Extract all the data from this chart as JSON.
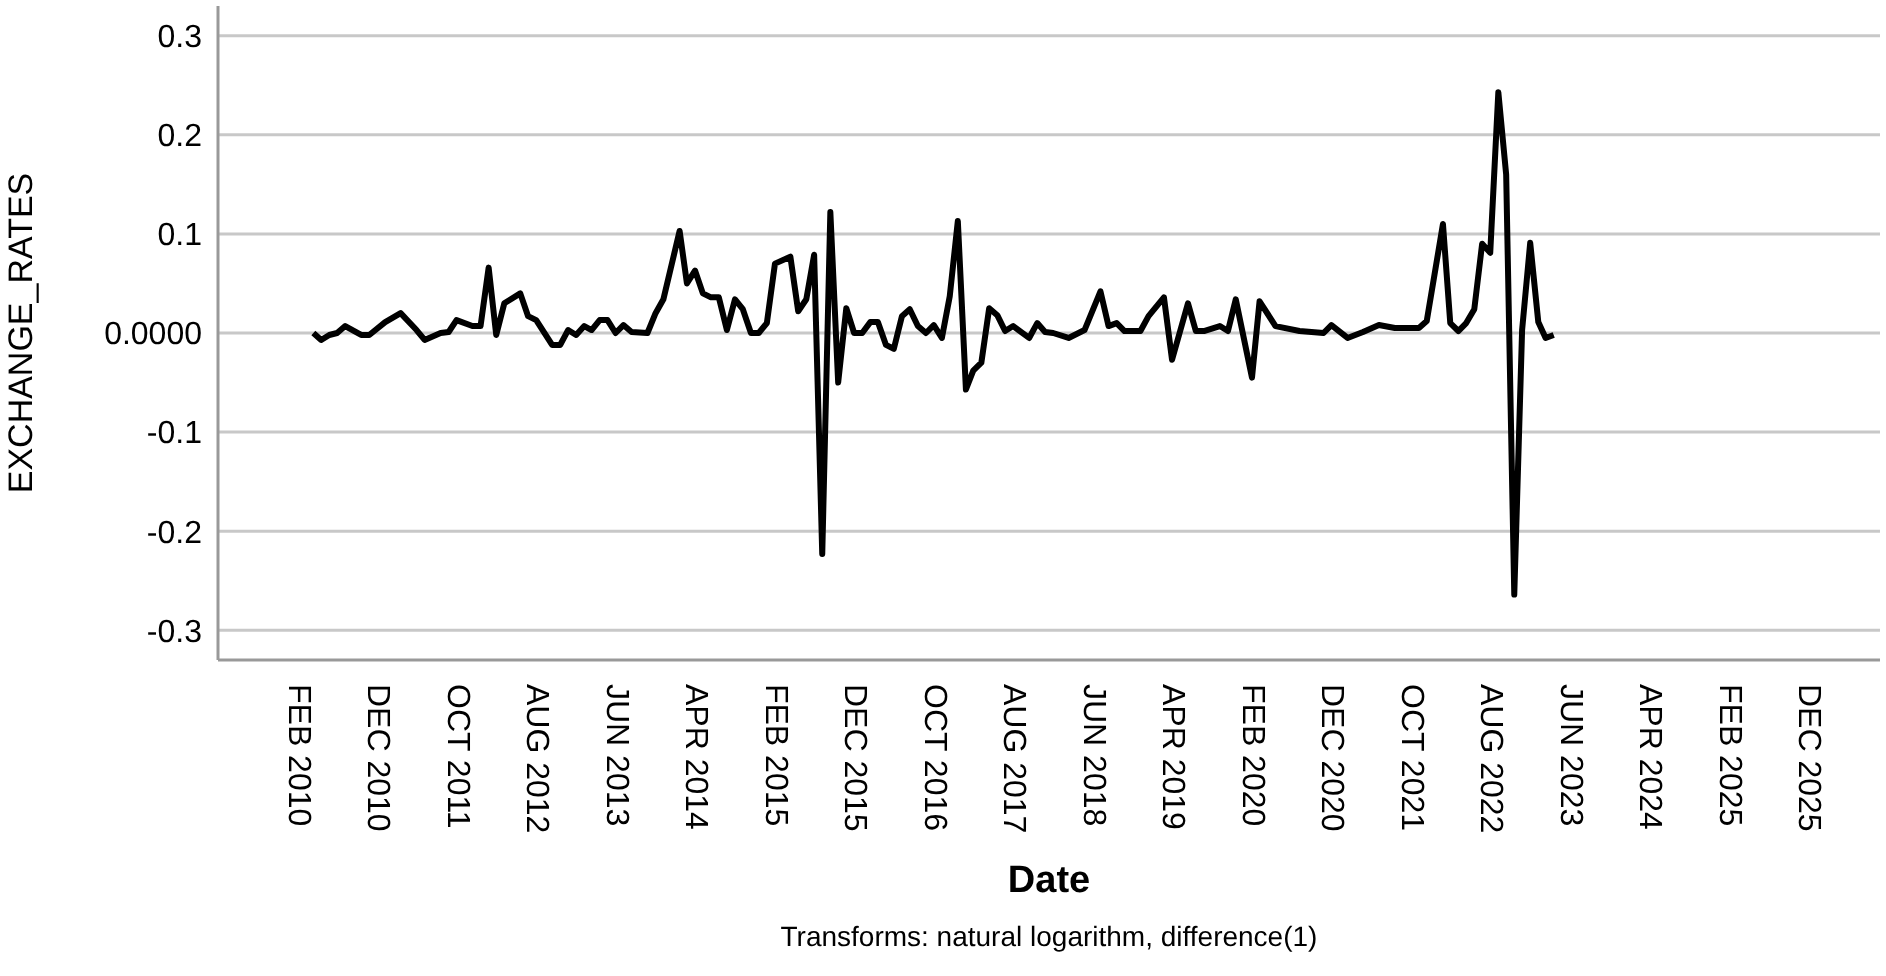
{
  "chart_data": {
    "type": "line",
    "xlabel": "Date",
    "ylabel": "EXCHANGE_RATES",
    "annotations": [
      "Transforms: natural logarithm, difference(1)"
    ],
    "x": [
      "2010-04",
      "2010-05",
      "2010-06",
      "2010-07",
      "2010-08",
      "2010-10",
      "2010-11",
      "2011-01",
      "2011-03",
      "2011-05",
      "2011-06",
      "2011-08",
      "2011-09",
      "2011-10",
      "2011-12",
      "2012-01",
      "2012-02",
      "2012-03",
      "2012-04",
      "2012-06",
      "2012-07",
      "2012-08",
      "2012-10",
      "2012-11",
      "2012-12",
      "2013-01",
      "2013-02",
      "2013-03",
      "2013-04",
      "2013-05",
      "2013-06",
      "2013-07",
      "2013-08",
      "2013-10",
      "2013-11",
      "2013-12",
      "2014-02",
      "2014-03",
      "2014-04",
      "2014-05",
      "2014-06",
      "2014-07",
      "2014-08",
      "2014-09",
      "2014-10",
      "2014-11",
      "2014-12",
      "2015-01",
      "2015-02",
      "2015-04",
      "2015-05",
      "2015-06",
      "2015-07",
      "2015-08",
      "2015-09",
      "2015-10",
      "2015-11",
      "2015-12",
      "2016-01",
      "2016-02",
      "2016-03",
      "2016-04",
      "2016-05",
      "2016-06",
      "2016-07",
      "2016-08",
      "2016-09",
      "2016-10",
      "2016-11",
      "2016-12",
      "2017-01",
      "2017-02",
      "2017-03",
      "2017-04",
      "2017-05",
      "2017-06",
      "2017-07",
      "2017-08",
      "2017-10",
      "2017-11",
      "2017-12",
      "2018-01",
      "2018-03",
      "2018-05",
      "2018-07",
      "2018-08",
      "2018-09",
      "2018-10",
      "2018-12",
      "2019-01",
      "2019-03",
      "2019-04",
      "2019-06",
      "2019-07",
      "2019-08",
      "2019-10",
      "2019-11",
      "2019-12",
      "2020-02",
      "2020-03",
      "2020-05",
      "2020-08",
      "2020-11",
      "2020-12",
      "2021-02",
      "2021-04",
      "2021-06",
      "2021-08",
      "2021-11",
      "2021-12",
      "2022-02",
      "2022-03",
      "2022-04",
      "2022-05",
      "2022-06",
      "2022-07",
      "2022-08",
      "2022-09",
      "2022-10",
      "2022-11",
      "2022-12",
      "2023-01",
      "2023-02",
      "2023-03",
      "2023-04"
    ],
    "series": [
      {
        "color": "#000000",
        "values": [
          0,
          -0.007,
          -0.002,
          0,
          0.007,
          -0.002,
          -0.002,
          0.011,
          0.02,
          0.003,
          -0.007,
          0,
          0.001,
          0.013,
          0.007,
          0.007,
          0.066,
          -0.002,
          0.03,
          0.04,
          0.017,
          0.013,
          -0.012,
          -0.012,
          0.003,
          -0.002,
          0.007,
          0.003,
          0.013,
          0.013,
          0,
          0.008,
          0.001,
          0,
          0.02,
          0.034,
          0.103,
          0.05,
          0.063,
          0.04,
          0.036,
          0.036,
          0.003,
          0.034,
          0.024,
          0,
          0,
          0.01,
          0.07,
          0.077,
          0.022,
          0.034,
          0.079,
          -0.223,
          0.122,
          -0.05,
          0.025,
          0,
          0,
          0.011,
          0.011,
          -0.012,
          -0.016,
          0.017,
          0.024,
          0.007,
          0,
          0.008,
          -0.005,
          0.037,
          0.113,
          -0.057,
          -0.038,
          -0.03,
          0.025,
          0.018,
          0.002,
          0.007,
          -0.005,
          0.01,
          0.001,
          0,
          -0.005,
          0.003,
          0.042,
          0.007,
          0.01,
          0.002,
          0.002,
          0.017,
          0.036,
          -0.027,
          0.03,
          0.002,
          0.002,
          0.007,
          0.002,
          0.034,
          -0.045,
          0.032,
          0.007,
          0.002,
          0,
          0.008,
          -0.005,
          0.001,
          0.008,
          0.005,
          0.005,
          0.012,
          0.11,
          0.01,
          0.002,
          0.01,
          0.024,
          0.09,
          0.081,
          0.243,
          0.16,
          -0.264,
          0.003,
          0.091,
          0.011,
          -0.005,
          -0.002
        ]
      }
    ],
    "xlim": [
      "2009-04",
      "2026-09"
    ],
    "xticks": [
      {
        "value": "2010-02",
        "label": "FEB 2010"
      },
      {
        "value": "2010-12",
        "label": "DEC 2010"
      },
      {
        "value": "2011-10",
        "label": "OCT 2011"
      },
      {
        "value": "2012-08",
        "label": "AUG 2012"
      },
      {
        "value": "2013-06",
        "label": "JUN 2013"
      },
      {
        "value": "2014-04",
        "label": "APR 2014"
      },
      {
        "value": "2015-02",
        "label": "FEB 2015"
      },
      {
        "value": "2015-12",
        "label": "DEC 2015"
      },
      {
        "value": "2016-10",
        "label": "OCT 2016"
      },
      {
        "value": "2017-08",
        "label": "AUG 2017"
      },
      {
        "value": "2018-06",
        "label": "JUN 2018"
      },
      {
        "value": "2019-04",
        "label": "APR 2019"
      },
      {
        "value": "2020-02",
        "label": "FEB 2020"
      },
      {
        "value": "2020-12",
        "label": "DEC 2020"
      },
      {
        "value": "2021-10",
        "label": "OCT 2021"
      },
      {
        "value": "2022-08",
        "label": "AUG 2022"
      },
      {
        "value": "2023-06",
        "label": "JUN 2023"
      },
      {
        "value": "2024-04",
        "label": "APR 2024"
      },
      {
        "value": "2025-02",
        "label": "FEB 2025"
      },
      {
        "value": "2025-12",
        "label": "DEC 2025"
      }
    ],
    "ylim": [
      -0.33,
      0.33
    ],
    "yticks": [
      -0.3,
      -0.2,
      -0.1,
      {
        "value": 0,
        "label": "0.0000"
      },
      0.1,
      0.2,
      0.3
    ],
    "grid": "y",
    "legend": false,
    "marker": "none",
    "line_style": "solid"
  }
}
